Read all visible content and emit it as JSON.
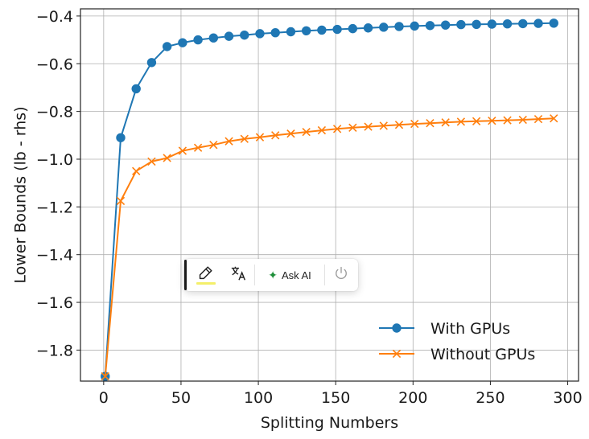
{
  "chart_data": {
    "type": "line",
    "title": "",
    "xlabel": "Splitting Numbers",
    "ylabel": "Lower Bounds (lb - rhs)",
    "xlim": [
      -15,
      307
    ],
    "ylim": [
      -1.93,
      -0.37
    ],
    "xticks": [
      0,
      50,
      100,
      150,
      200,
      250,
      300
    ],
    "xtick_labels": [
      "0",
      "50",
      "100",
      "150",
      "200",
      "250",
      "300"
    ],
    "yticks": [
      -1.8,
      -1.6,
      -1.4,
      -1.2,
      -1.0,
      -0.8,
      -0.6,
      -0.4
    ],
    "ytick_labels": [
      "−1.8",
      "−1.6",
      "−1.4",
      "−1.2",
      "−1.0",
      "−0.8",
      "−0.6",
      "−0.4"
    ],
    "grid": true,
    "legend_position": "lower-right",
    "x": [
      1,
      11,
      21,
      31,
      41,
      51,
      61,
      71,
      81,
      91,
      101,
      111,
      121,
      131,
      141,
      151,
      161,
      171,
      181,
      191,
      201,
      211,
      221,
      231,
      241,
      251,
      261,
      271,
      281,
      291
    ],
    "series": [
      {
        "name": "With GPUs",
        "color": "#1f77b4",
        "marker": "circle",
        "values": [
          -1.91,
          -0.91,
          -0.705,
          -0.595,
          -0.528,
          -0.512,
          -0.5,
          -0.492,
          -0.485,
          -0.48,
          -0.474,
          -0.47,
          -0.466,
          -0.462,
          -0.459,
          -0.456,
          -0.453,
          -0.45,
          -0.447,
          -0.444,
          -0.442,
          -0.44,
          -0.438,
          -0.436,
          -0.435,
          -0.434,
          -0.433,
          -0.432,
          -0.431,
          -0.43
        ]
      },
      {
        "name": "Without GPUs",
        "color": "#ff7f0e",
        "marker": "x",
        "values": [
          -1.91,
          -1.175,
          -1.05,
          -1.01,
          -0.995,
          -0.965,
          -0.952,
          -0.94,
          -0.925,
          -0.915,
          -0.908,
          -0.9,
          -0.893,
          -0.886,
          -0.879,
          -0.873,
          -0.868,
          -0.864,
          -0.86,
          -0.856,
          -0.852,
          -0.849,
          -0.846,
          -0.843,
          -0.841,
          -0.839,
          -0.837,
          -0.835,
          -0.832,
          -0.829
        ]
      }
    ]
  },
  "toolbar": {
    "highlight_icon": "highlighter-icon",
    "translate_icon": "translate-icon",
    "ask_ai_label": "Ask AI",
    "ask_ai_icon": "sparkle-icon",
    "power_icon": "power-icon"
  }
}
